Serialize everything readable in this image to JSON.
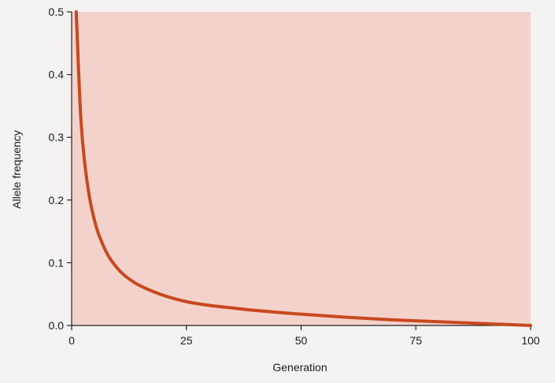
{
  "chart_data": {
    "type": "line",
    "title": "",
    "xlabel": "Generation",
    "ylabel": "Allele frequency",
    "xlim": [
      0,
      100
    ],
    "ylim": [
      0,
      0.5
    ],
    "x_ticks": [
      0,
      25,
      50,
      75,
      100
    ],
    "x_tick_labels": [
      "0",
      "25",
      "50",
      "75",
      "100"
    ],
    "y_ticks": [
      0,
      0.1,
      0.2,
      0.3,
      0.4,
      0.5
    ],
    "y_tick_labels": [
      "0.0",
      "0.1",
      "0.2",
      "0.3",
      "0.4",
      "0.5"
    ],
    "grid": false,
    "legend": "none",
    "series": [
      {
        "x": [
          1,
          2,
          3,
          4,
          5,
          6,
          8,
          10,
          12,
          15,
          20,
          25,
          30,
          35,
          40,
          50,
          60,
          70,
          80,
          90,
          100
        ],
        "y": [
          0.5,
          0.33,
          0.25,
          0.2,
          0.167,
          0.143,
          0.111,
          0.091,
          0.077,
          0.063,
          0.048,
          0.038,
          0.032,
          0.028,
          0.024,
          0.018,
          0.013,
          0.009,
          0.006,
          0.003,
          0.0
        ]
      }
    ]
  },
  "colors": {
    "plot_background": "#f3d2cc",
    "line": "#c8481e",
    "axis": "#222222"
  }
}
